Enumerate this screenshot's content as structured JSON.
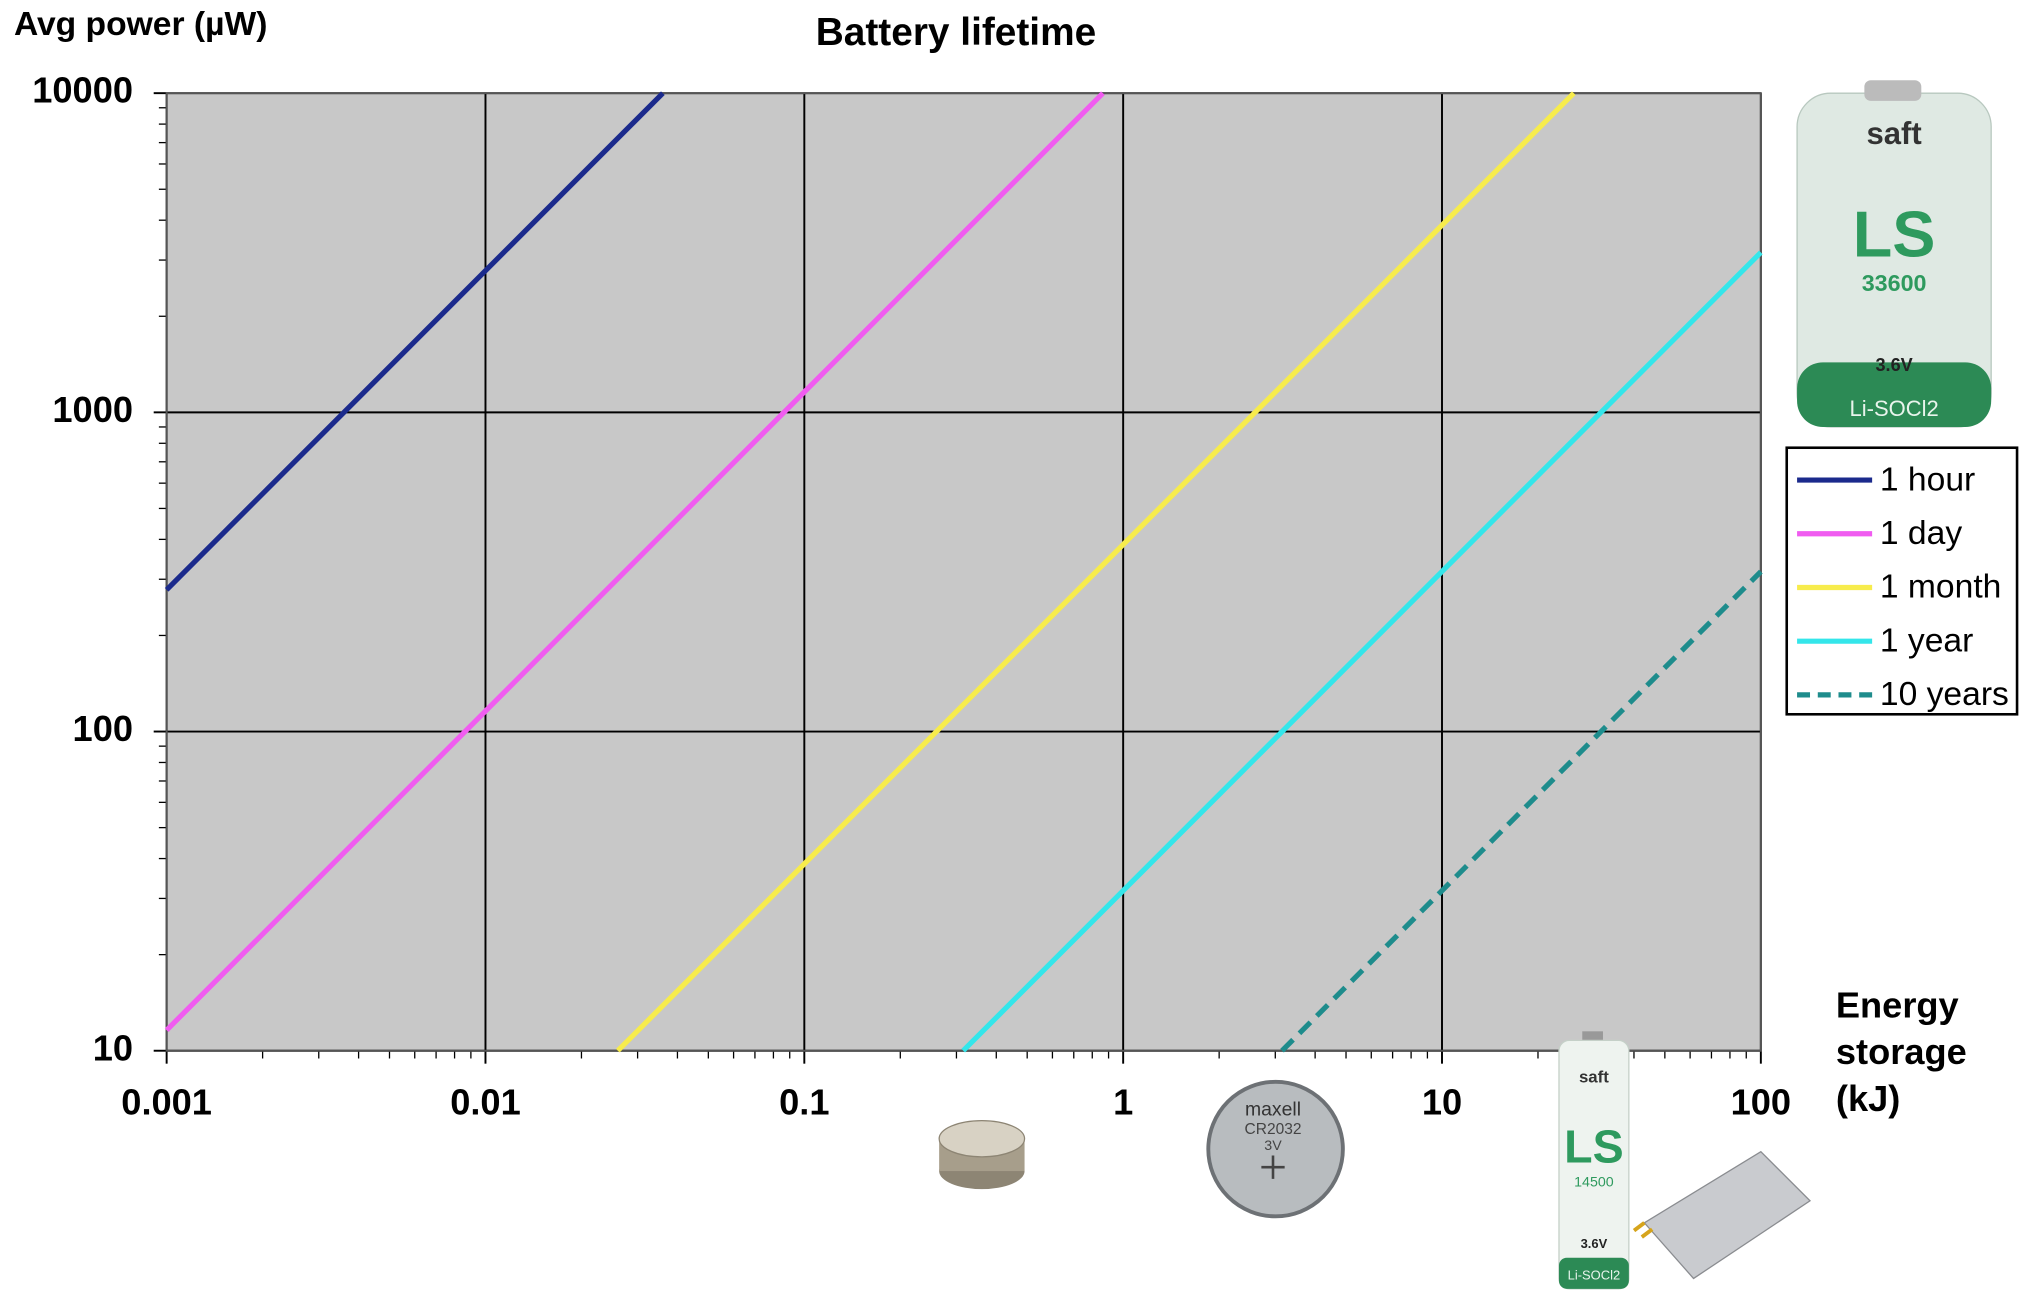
{
  "chart_data": {
    "type": "line",
    "title": "Battery lifetime",
    "y_label": "Avg power (µW)",
    "x_label_lines": [
      "Energy",
      "storage",
      "(kJ)"
    ],
    "log_x": true,
    "log_y": true,
    "grid": true,
    "legend": "right",
    "xlim": [
      0.001,
      100
    ],
    "xticks": [
      0.001,
      0.01,
      0.1,
      1,
      10,
      100
    ],
    "ylim": [
      10,
      10000
    ],
    "yticks": [
      10,
      100,
      1000,
      10000
    ],
    "series": [
      {
        "name": "1 hour",
        "color": "#1b2a8c",
        "dashed": false,
        "x": [
          0.001,
          0.036
        ],
        "values": [
          278,
          10000
        ]
      },
      {
        "name": "1 day",
        "color": "#f05cf0",
        "dashed": false,
        "x": [
          0.001,
          0.864
        ],
        "values": [
          11.6,
          10000
        ]
      },
      {
        "name": "1 month",
        "color": "#f7ec4c",
        "dashed": false,
        "x": [
          0.026,
          25.9
        ],
        "values": [
          10,
          10000
        ]
      },
      {
        "name": "1 year",
        "color": "#34e6ea",
        "dashed": false,
        "x": [
          0.315,
          100
        ],
        "values": [
          10,
          3170
        ]
      },
      {
        "name": "10 years",
        "color": "#1e8c8c",
        "dashed": true,
        "x": [
          3.15,
          100
        ],
        "values": [
          10,
          317
        ]
      }
    ],
    "images": {
      "large_cell": {
        "brand": "saft",
        "model": "LS",
        "number": "33600",
        "voltage": "3.6V",
        "chemistry": "Li-SOCl2"
      },
      "coin_cell": {
        "brand": "maxell",
        "model": "CR2032",
        "voltage": "3V"
      },
      "aa_cell": {
        "brand": "saft",
        "model": "LS",
        "number": "14500",
        "voltage": "3.6V",
        "chemistry": "Li-SOCl2"
      }
    }
  }
}
